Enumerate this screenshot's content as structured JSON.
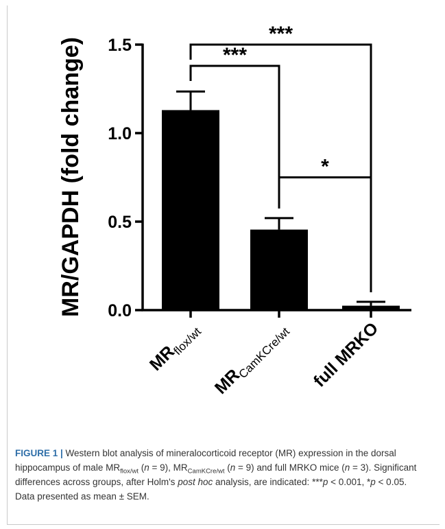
{
  "chart_data": {
    "type": "bar",
    "ylabel": "MR/GAPDH (fold change)",
    "ylim": [
      0,
      1.5
    ],
    "yticks": [
      0.0,
      0.5,
      1.0,
      1.5
    ],
    "ytick_labels": [
      "0.0",
      "0.5",
      "1.0",
      "1.5"
    ],
    "categories": [
      {
        "main": "MR",
        "sub": "flox/wt"
      },
      {
        "main": "MR",
        "sub": "CamKCre/wt"
      },
      {
        "main": "full MRKO",
        "sub": ""
      }
    ],
    "values": [
      1.13,
      0.455,
      0.025
    ],
    "errors": [
      0.105,
      0.065,
      0.022
    ],
    "bar_color": "#000000",
    "significance": [
      {
        "from": 0,
        "to": 1,
        "label": "***",
        "level": 1.38
      },
      {
        "from": 0,
        "to": 2,
        "label": "***",
        "level": 1.5
      },
      {
        "from": 1,
        "to": 2,
        "label": "*",
        "level": 0.75
      }
    ]
  },
  "caption": {
    "label": "FIGURE 1 |",
    "t1": " Western blot analysis of mineralocorticoid receptor (MR) expression in the dorsal hippocampus of male MR",
    "s1": "flox/wt",
    "t2": " (",
    "n1": "n",
    "t3": " = 9), MR",
    "s2": "CamKCre/wt",
    "t4": " (",
    "n2": "n",
    "t5": " = 9) and full MRKO mice (",
    "n3": "n",
    "t6": " = 3). Significant differences across groups, after Holm's ",
    "posthoc": "post hoc",
    "t7": " analysis, are indicated: ***",
    "p1": "p",
    "t8": " < 0.001, *",
    "p2": "p",
    "t9": " < 0.05. Data presented as mean ± SEM."
  }
}
